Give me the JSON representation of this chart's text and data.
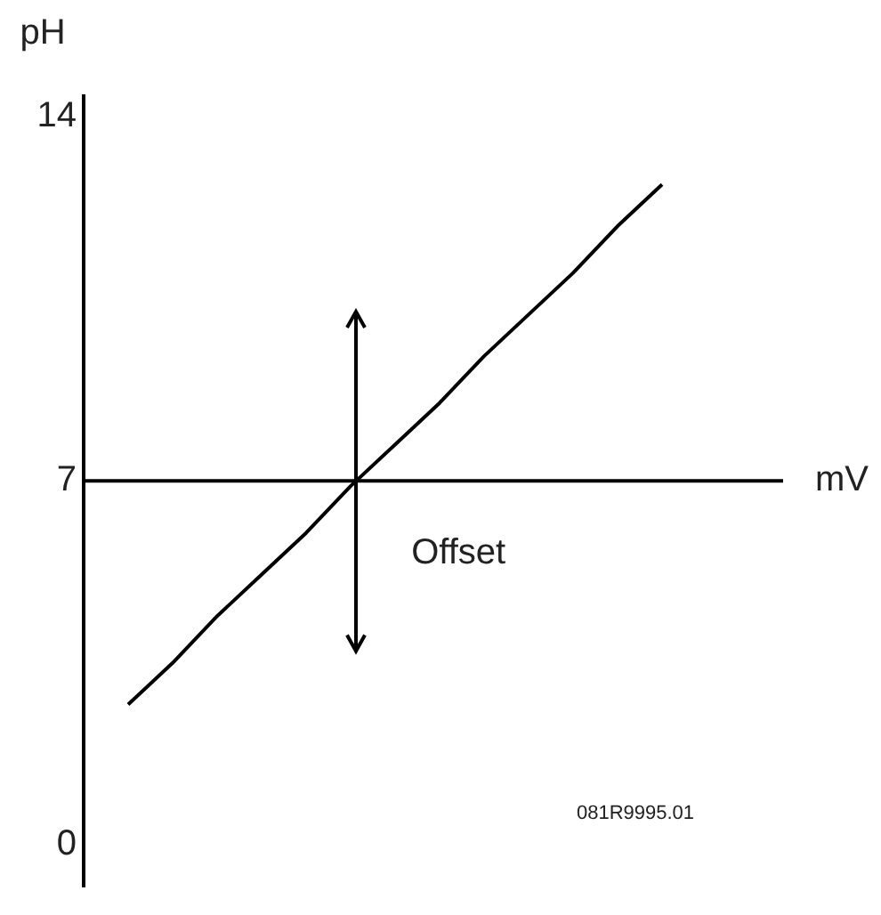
{
  "chart_data": {
    "type": "line",
    "ylabel": "pH",
    "xlabel": "mV",
    "categories": [
      null,
      null,
      null,
      null,
      null,
      null,
      null,
      null,
      null,
      null,
      null,
      null,
      null,
      null,
      null,
      null
    ],
    "series": [
      {
        "color": "#000000",
        "values": [
          null,
          2.7,
          3.5,
          4.4,
          5.2,
          6.0,
          6.9,
          7.7,
          8.5,
          9.4,
          10.2,
          11.0,
          11.9,
          12.7,
          null,
          null
        ]
      }
    ],
    "ylim": [
      -0.8,
      14.4
    ],
    "yticks": [
      0,
      7,
      14
    ],
    "ref_lines": [
      {
        "axis": "y",
        "value": 7,
        "color": "#000000"
      }
    ],
    "annotations": [
      "Offset",
      "081R9995.01"
    ],
    "grid": false,
    "legend": false,
    "tick_labels": "y",
    "marker": "none",
    "line_style": "solid"
  }
}
